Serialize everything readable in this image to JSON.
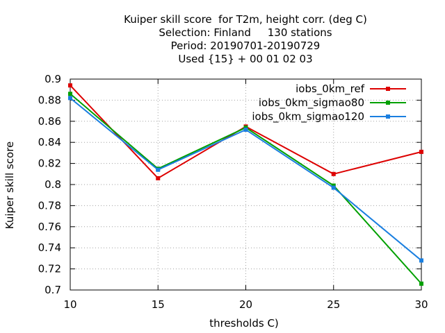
{
  "chart_data": {
    "type": "line",
    "title_lines": [
      "Kuiper skill score  for T2m, height corr. (deg C)",
      "Selection: Finland     130 stations",
      "Period: 20190701-20190729",
      "Used {15} + 00 01 02 03"
    ],
    "xlabel": "thresholds C)",
    "ylabel": "Kuiper skill score",
    "x": [
      10,
      15,
      20,
      25,
      30
    ],
    "xlim": [
      10,
      30
    ],
    "ylim": [
      0.7,
      0.9
    ],
    "x_ticks": [
      "10",
      "15",
      "20",
      "25",
      "30"
    ],
    "y_ticks": [
      "0.7",
      "0.72",
      "0.74",
      "0.76",
      "0.78",
      "0.8",
      "0.82",
      "0.84",
      "0.86",
      "0.88",
      "0.9"
    ],
    "grid": true,
    "legend_position": "top-right",
    "series": [
      {
        "name": "iobs_0km_ref",
        "color": "#dd0000",
        "values": [
          0.894,
          0.806,
          0.855,
          0.81,
          0.831
        ]
      },
      {
        "name": "iobs_0km_sigmao80",
        "color": "#00a000",
        "values": [
          0.886,
          0.815,
          0.854,
          0.799,
          0.706
        ]
      },
      {
        "name": "iobs_0km_sigmao120",
        "color": "#1a7fe0",
        "values": [
          0.882,
          0.814,
          0.852,
          0.797,
          0.728
        ]
      }
    ]
  }
}
